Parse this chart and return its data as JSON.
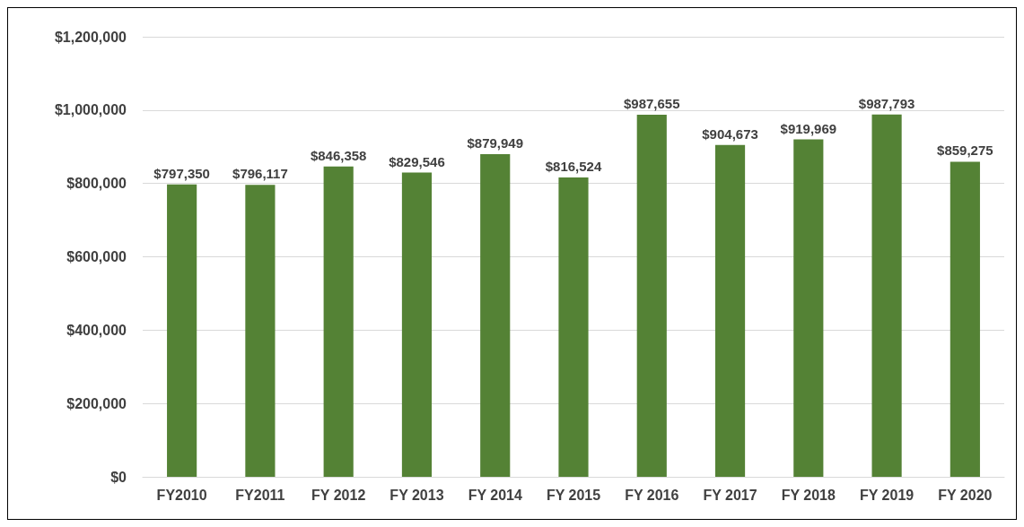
{
  "chart_data": {
    "type": "bar",
    "categories": [
      "FY2010",
      "FY2011",
      "FY 2012",
      "FY 2013",
      "FY 2014",
      "FY 2015",
      "FY 2016",
      "FY 2017",
      "FY 2018",
      "FY 2019",
      "FY 2020"
    ],
    "values": [
      797350,
      796117,
      846358,
      829546,
      879949,
      816524,
      987655,
      904673,
      919969,
      987793,
      859275
    ],
    "value_labels": [
      "$797,350",
      "$796,117",
      "$846,358",
      "$829,546",
      "$879,949",
      "$816,524",
      "$987,655",
      "$904,673",
      "$919,969",
      "$987,793",
      "$859,275"
    ],
    "color": "#548235",
    "ylim": [
      0,
      1200000
    ],
    "yticks": [
      {
        "value": 0,
        "label": "$0"
      },
      {
        "value": 200000,
        "label": "$200,000"
      },
      {
        "value": 400000,
        "label": "$400,000"
      },
      {
        "value": 600000,
        "label": "$600,000"
      },
      {
        "value": 800000,
        "label": "$800,000"
      },
      {
        "value": 1000000,
        "label": "$1,000,000"
      },
      {
        "value": 1200000,
        "label": "$1,200,000"
      }
    ],
    "grid": "y"
  }
}
